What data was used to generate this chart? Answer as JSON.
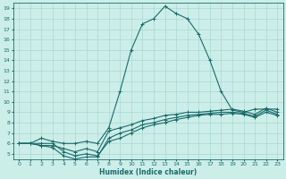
{
  "xlabel": "Humidex (Indice chaleur)",
  "xlim": [
    -0.5,
    23.5
  ],
  "ylim": [
    4.5,
    19.5
  ],
  "xticks": [
    0,
    1,
    2,
    3,
    4,
    5,
    6,
    7,
    8,
    9,
    10,
    11,
    12,
    13,
    14,
    15,
    16,
    17,
    18,
    19,
    20,
    21,
    22,
    23
  ],
  "yticks": [
    5,
    6,
    7,
    8,
    9,
    10,
    11,
    12,
    13,
    14,
    15,
    16,
    17,
    18,
    19
  ],
  "bg_color": "#cceee8",
  "grid_color": "#aad8d2",
  "line_color": "#1a6b6b",
  "lines": [
    [
      6.0,
      6.0,
      6.5,
      6.2,
      6.0,
      6.0,
      6.2,
      6.0,
      7.5,
      11.0,
      15.0,
      17.5,
      18.0,
      19.2,
      18.5,
      18.0,
      16.5,
      14.0,
      11.0,
      9.2,
      9.0,
      9.3,
      9.3,
      9.3
    ],
    [
      6.0,
      6.0,
      6.0,
      6.0,
      5.2,
      4.8,
      5.0,
      4.8,
      6.2,
      6.5,
      7.0,
      7.5,
      7.8,
      8.0,
      8.3,
      8.5,
      8.7,
      8.8,
      8.8,
      8.9,
      8.8,
      8.5,
      9.0,
      8.7
    ],
    [
      6.0,
      6.0,
      5.8,
      5.6,
      4.8,
      4.5,
      4.7,
      4.7,
      6.5,
      7.0,
      7.3,
      7.8,
      8.0,
      8.3,
      8.5,
      8.7,
      8.8,
      8.9,
      9.0,
      9.0,
      8.9,
      8.6,
      9.2,
      8.8
    ],
    [
      6.0,
      6.0,
      5.8,
      5.8,
      5.5,
      5.2,
      5.5,
      5.2,
      7.2,
      7.5,
      7.8,
      8.2,
      8.4,
      8.7,
      8.8,
      9.0,
      9.0,
      9.1,
      9.2,
      9.3,
      9.1,
      8.8,
      9.4,
      9.0
    ]
  ],
  "marker": "+",
  "markersize": 3,
  "linewidth": 0.8
}
